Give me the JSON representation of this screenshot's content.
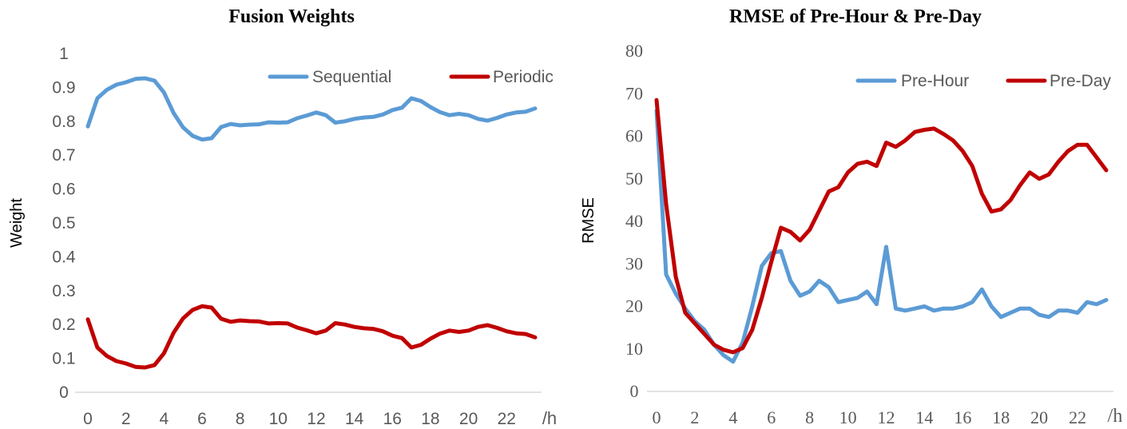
{
  "chart_data": [
    {
      "type": "line",
      "title": "Fusion Weights",
      "xlabel": "",
      "ylabel": "Weight",
      "x_unit": "/h",
      "xlim": [
        0,
        23.5
      ],
      "ylim": [
        0,
        1
      ],
      "x_ticks": [
        0,
        2,
        4,
        6,
        8,
        10,
        12,
        14,
        16,
        18,
        20,
        22
      ],
      "y_ticks": [
        0,
        0.1,
        0.2,
        0.3,
        0.4,
        0.5,
        0.6,
        0.7,
        0.8,
        0.9,
        1
      ],
      "y_tick_labels": [
        "0",
        "0.1",
        "0.2",
        "0.3",
        "0.4",
        "0.5",
        "0.6",
        "0.7",
        "0.8",
        "0.9",
        "1"
      ],
      "legend_position": "top-right",
      "series": [
        {
          "name": "Sequential",
          "color": "#5b9bd5",
          "x": [
            0,
            0.5,
            1,
            1.5,
            2,
            2.5,
            3,
            3.5,
            4,
            4.5,
            5,
            5.5,
            6,
            6.5,
            7,
            7.5,
            8,
            8.5,
            9,
            9.5,
            10,
            10.5,
            11,
            11.5,
            12,
            12.5,
            13,
            13.5,
            14,
            14.5,
            15,
            15.5,
            16,
            16.5,
            17,
            17.5,
            18,
            18.5,
            19,
            19.5,
            20,
            20.5,
            21,
            21.5,
            22,
            22.5,
            23,
            23.5
          ],
          "values": [
            0.785,
            0.868,
            0.893,
            0.908,
            0.915,
            0.925,
            0.927,
            0.92,
            0.885,
            0.825,
            0.782,
            0.757,
            0.746,
            0.75,
            0.783,
            0.792,
            0.788,
            0.79,
            0.791,
            0.797,
            0.796,
            0.797,
            0.809,
            0.817,
            0.826,
            0.818,
            0.796,
            0.8,
            0.807,
            0.811,
            0.813,
            0.82,
            0.833,
            0.84,
            0.868,
            0.86,
            0.842,
            0.827,
            0.818,
            0.822,
            0.818,
            0.807,
            0.802,
            0.81,
            0.82,
            0.826,
            0.828,
            0.838
          ]
        },
        {
          "name": "Periodic",
          "color": "#c00000",
          "x": [
            0,
            0.5,
            1,
            1.5,
            2,
            2.5,
            3,
            3.5,
            4,
            4.5,
            5,
            5.5,
            6,
            6.5,
            7,
            7.5,
            8,
            8.5,
            9,
            9.5,
            10,
            10.5,
            11,
            11.5,
            12,
            12.5,
            13,
            13.5,
            14,
            14.5,
            15,
            15.5,
            16,
            16.5,
            17,
            17.5,
            18,
            18.5,
            19,
            19.5,
            20,
            20.5,
            21,
            21.5,
            22,
            22.5,
            23,
            23.5
          ],
          "values": [
            0.215,
            0.132,
            0.107,
            0.092,
            0.085,
            0.075,
            0.073,
            0.08,
            0.115,
            0.175,
            0.218,
            0.243,
            0.254,
            0.25,
            0.217,
            0.208,
            0.212,
            0.21,
            0.209,
            0.203,
            0.204,
            0.203,
            0.191,
            0.183,
            0.174,
            0.182,
            0.204,
            0.2,
            0.193,
            0.189,
            0.187,
            0.18,
            0.167,
            0.16,
            0.132,
            0.14,
            0.158,
            0.173,
            0.182,
            0.178,
            0.182,
            0.193,
            0.198,
            0.19,
            0.18,
            0.174,
            0.172,
            0.162
          ]
        }
      ]
    },
    {
      "type": "line",
      "title": "RMSE of Pre-Hour & Pre-Day",
      "xlabel": "",
      "ylabel": "RMSE",
      "x_unit": "/h",
      "xlim": [
        0,
        23.5
      ],
      "ylim": [
        0,
        80
      ],
      "x_ticks": [
        0,
        2,
        4,
        6,
        8,
        10,
        12,
        14,
        16,
        18,
        20,
        22
      ],
      "y_ticks": [
        0,
        10,
        20,
        30,
        40,
        50,
        60,
        70,
        80
      ],
      "y_tick_labels": [
        "0",
        "10",
        "20",
        "30",
        "40",
        "50",
        "60",
        "70",
        "80"
      ],
      "legend_position": "top-right",
      "series": [
        {
          "name": "Pre-Hour",
          "color": "#5b9bd5",
          "x": [
            0,
            0.5,
            1,
            1.5,
            2,
            2.5,
            3,
            3.5,
            4,
            4.5,
            5,
            5.5,
            6,
            6.5,
            7,
            7.5,
            8,
            8.5,
            9,
            9.5,
            10,
            10.5,
            11,
            11.5,
            12,
            12.5,
            13,
            13.5,
            14,
            14.5,
            15,
            15.5,
            16,
            16.5,
            17,
            17.5,
            18,
            18.5,
            19,
            19.5,
            20,
            20.5,
            21,
            21.5,
            22,
            22.5,
            23,
            23.5
          ],
          "values": [
            66,
            27.5,
            23,
            19.5,
            16.5,
            14.5,
            11,
            8.5,
            7,
            11.5,
            20,
            29.5,
            32.5,
            33,
            26,
            22.5,
            23.5,
            26,
            24.5,
            21,
            21.5,
            22,
            23.5,
            20.5,
            34,
            19.5,
            19,
            19.5,
            20,
            19,
            19.5,
            19.5,
            20,
            21,
            24,
            20,
            17.5,
            18.5,
            19.5,
            19.5,
            18,
            17.5,
            19,
            19,
            18.5,
            21,
            20.5,
            21.5
          ]
        },
        {
          "name": "Pre-Day",
          "color": "#c00000",
          "x": [
            0,
            0.5,
            1,
            1.5,
            2,
            2.5,
            3,
            3.5,
            4,
            4.5,
            5,
            5.5,
            6,
            6.5,
            7,
            7.5,
            8,
            8.5,
            9,
            9.5,
            10,
            10.5,
            11,
            11.5,
            12,
            12.5,
            13,
            13.5,
            14,
            14.5,
            15,
            15.5,
            16,
            16.5,
            17,
            17.5,
            18,
            18.5,
            19,
            19.5,
            20,
            20.5,
            21,
            21.5,
            22,
            22.5,
            23,
            23.5
          ],
          "values": [
            68.5,
            44,
            27,
            18.5,
            16,
            13.5,
            11,
            9.8,
            9.2,
            10.2,
            14.5,
            22,
            30.5,
            38.5,
            37.5,
            35.5,
            38,
            42.5,
            47,
            48,
            51.5,
            53.5,
            54,
            53,
            58.5,
            57.5,
            59,
            61,
            61.5,
            61.8,
            60.5,
            59,
            56.5,
            53,
            46.5,
            42.3,
            42.8,
            45,
            48.5,
            51.5,
            50,
            51,
            54,
            56.5,
            58,
            58,
            55,
            52
          ]
        }
      ]
    }
  ]
}
